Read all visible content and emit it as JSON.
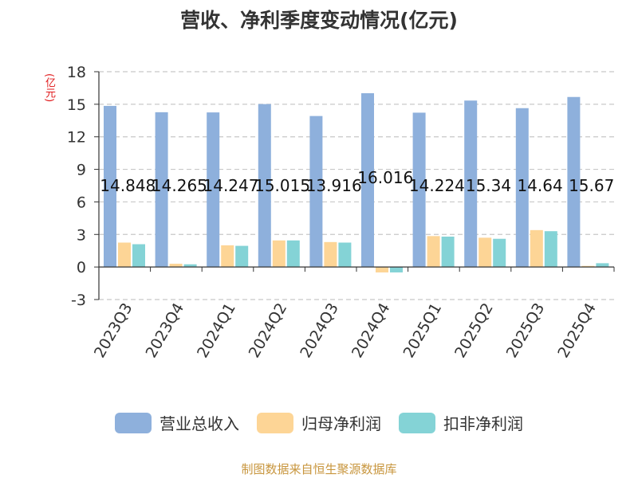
{
  "title": "营收、净利季度变动情况(亿元)",
  "unit": "(亿元)",
  "source": "制图数据来自恒生聚源数据库",
  "colors": {
    "revenue": "#8eb0dc",
    "net_profit": "#fdd596",
    "deducted_profit": "#84d3d6"
  },
  "chart_data": {
    "type": "bar",
    "title": "营收、净利季度变动情况(亿元)",
    "ylabel": "(亿元)",
    "ylim": [
      -3,
      18
    ],
    "yticks": [
      -3,
      0,
      3,
      6,
      9,
      12,
      15,
      18
    ],
    "grid": true,
    "legend_position": "bottom",
    "categories": [
      "2023Q3",
      "2023Q4",
      "2024Q1",
      "2024Q2",
      "2024Q3",
      "2024Q4",
      "2025Q1",
      "2025Q2",
      "2025Q3",
      "2025Q4"
    ],
    "series": [
      {
        "name": "营业总收入",
        "values": [
          14.848,
          14.265,
          14.247,
          15.015,
          13.916,
          16.016,
          14.224,
          15.34,
          14.64,
          15.67
        ]
      },
      {
        "name": "归母净利润",
        "values": [
          2.25,
          0.3,
          2.0,
          2.45,
          2.3,
          -0.5,
          2.85,
          2.7,
          3.4,
          0.1
        ]
      },
      {
        "name": "扣非净利润",
        "values": [
          2.1,
          0.25,
          1.95,
          2.45,
          2.25,
          -0.5,
          2.8,
          2.6,
          3.3,
          0.35
        ]
      }
    ],
    "data_labels": [
      "14.848",
      "14.265",
      "14.247",
      "15.015",
      "13.916",
      "16.016",
      "14.224",
      "15.34",
      "14.64",
      "15.67"
    ]
  }
}
